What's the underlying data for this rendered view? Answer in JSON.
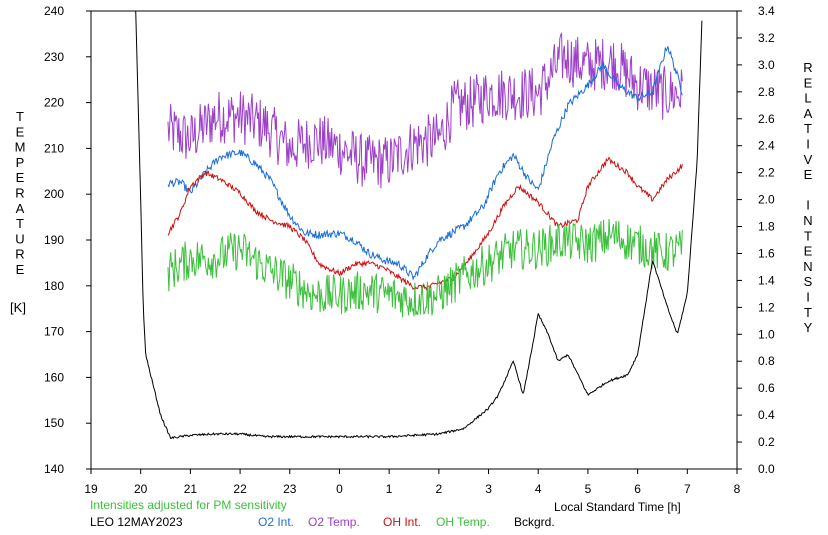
{
  "chart_data": {
    "type": "line",
    "title": "",
    "left_axis": {
      "label_letters": [
        "T",
        "E",
        "M",
        "P",
        "E",
        "R",
        "A",
        "T",
        "U",
        "R",
        "E"
      ],
      "unit": "[K]",
      "ylim": [
        140,
        240
      ],
      "ticks": [
        "140",
        "150",
        "160",
        "170",
        "180",
        "190",
        "200",
        "210",
        "220",
        "230",
        "240"
      ]
    },
    "right_axis": {
      "label_letters": [
        "R",
        "E",
        "L",
        "A",
        "T",
        "I",
        "V",
        "E",
        "",
        "I",
        "N",
        "T",
        "E",
        "N",
        "S",
        "I",
        "T",
        "Y"
      ],
      "ylim": [
        0.0,
        3.4
      ],
      "ticks": [
        "0.0",
        "0.2",
        "0.4",
        "0.6",
        "0.8",
        "1.0",
        "1.2",
        "1.4",
        "1.6",
        "1.8",
        "2.0",
        "2.2",
        "2.4",
        "2.6",
        "2.8",
        "3.0",
        "3.2",
        "3.4"
      ]
    },
    "x_axis": {
      "label": "Local Standard Time [h]",
      "xlim": [
        19,
        32
      ],
      "ticks": [
        "19",
        "20",
        "21",
        "22",
        "23",
        "0",
        "1",
        "2",
        "3",
        "4",
        "5",
        "6",
        "7",
        "8"
      ]
    },
    "notes": {
      "adjusted_text": "Intensities adjusted for PM sensitivity",
      "station_date": "LEO 12MAY2023"
    },
    "legend": [
      {
        "label": "O2 Int.",
        "color": "#1a6fd6"
      },
      {
        "label": "O2 Temp.",
        "color": "#9c40c8"
      },
      {
        "label": "OH Int.",
        "color": "#cc1111"
      },
      {
        "label": "OH Temp.",
        "color": "#3cbf3c"
      },
      {
        "label": "Bckgrd.",
        "color": "#000000"
      }
    ],
    "series": [
      {
        "name": "O2 Temp.",
        "color": "#9c40c8",
        "axis": "left",
        "noise": 6,
        "x": [
          20.55,
          21.0,
          21.5,
          22.0,
          22.5,
          23.0,
          23.5,
          24.0,
          24.5,
          25.0,
          25.5,
          26.0,
          26.3,
          26.7,
          27.0,
          27.5,
          28.0,
          28.5,
          29.0,
          29.5,
          30.0,
          30.5,
          30.9
        ],
        "y": [
          214,
          212,
          217,
          217,
          215,
          210,
          212,
          210,
          207,
          207,
          211,
          212,
          219,
          220,
          222,
          222,
          222,
          230,
          228,
          229,
          224,
          222,
          222
        ]
      },
      {
        "name": "O2 Int.",
        "color": "#1a6fd6",
        "axis": "right",
        "noise": 0.03,
        "x": [
          20.55,
          20.8,
          21.0,
          21.3,
          21.6,
          22.0,
          22.3,
          22.6,
          23.0,
          23.3,
          23.6,
          24.0,
          24.3,
          24.6,
          24.9,
          25.2,
          25.5,
          25.8,
          26.0,
          26.5,
          26.9,
          27.2,
          27.5,
          27.8,
          28.0,
          28.3,
          28.6,
          29.0,
          29.3,
          29.6,
          30.0,
          30.3,
          30.6,
          30.9
        ],
        "y": [
          2.12,
          2.13,
          2.05,
          2.2,
          2.32,
          2.35,
          2.27,
          2.15,
          1.88,
          1.75,
          1.74,
          1.75,
          1.7,
          1.6,
          1.55,
          1.52,
          1.42,
          1.6,
          1.7,
          1.8,
          1.95,
          2.2,
          2.33,
          2.15,
          2.07,
          2.44,
          2.7,
          2.85,
          3.0,
          2.85,
          2.75,
          2.8,
          3.15,
          2.8
        ]
      },
      {
        "name": "OH Int.",
        "color": "#cc1111",
        "axis": "right",
        "noise": 0.02,
        "x": [
          20.55,
          20.8,
          21.0,
          21.3,
          21.6,
          22.0,
          22.3,
          22.6,
          23.0,
          23.3,
          23.6,
          24.0,
          24.3,
          24.6,
          24.9,
          25.2,
          25.5,
          25.8,
          26.0,
          26.3,
          26.6,
          27.0,
          27.3,
          27.6,
          28.0,
          28.4,
          28.8,
          29.0,
          29.4,
          29.8,
          30.0,
          30.3,
          30.6,
          30.9
        ],
        "y": [
          1.75,
          1.9,
          2.1,
          2.2,
          2.15,
          2.05,
          1.92,
          1.85,
          1.8,
          1.7,
          1.52,
          1.45,
          1.52,
          1.53,
          1.49,
          1.42,
          1.35,
          1.35,
          1.38,
          1.42,
          1.55,
          1.75,
          1.95,
          2.1,
          1.98,
          1.8,
          1.85,
          2.1,
          2.3,
          2.2,
          2.1,
          2.0,
          2.15,
          2.25
        ]
      },
      {
        "name": "OH Temp.",
        "color": "#3cbf3c",
        "axis": "left",
        "noise": 4.5,
        "x": [
          20.55,
          21.0,
          21.5,
          22.0,
          22.5,
          23.0,
          23.5,
          24.0,
          24.5,
          25.0,
          25.5,
          26.0,
          26.5,
          27.0,
          27.5,
          28.0,
          28.5,
          29.0,
          29.5,
          30.0,
          30.5,
          30.9
        ],
        "y": [
          183,
          186,
          186,
          188,
          184,
          181,
          178,
          178,
          179,
          178,
          177,
          178,
          182,
          185,
          188,
          188,
          190,
          189,
          191,
          189,
          187,
          188
        ]
      },
      {
        "name": "Bckgrd.",
        "color": "#000000",
        "axis": "right",
        "noise": 0.008,
        "x": [
          19.9,
          20.0,
          20.05,
          20.1,
          20.2,
          20.4,
          20.6,
          21.0,
          21.5,
          22.0,
          22.5,
          23.0,
          24.0,
          25.0,
          25.5,
          26.0,
          26.5,
          27.0,
          27.2,
          27.5,
          27.7,
          28.0,
          28.2,
          28.4,
          28.6,
          28.8,
          29.0,
          29.2,
          29.4,
          29.8,
          30.0,
          30.3,
          30.6,
          30.8,
          31.0,
          31.2,
          31.3
        ],
        "y": [
          3.4,
          2.0,
          1.2,
          0.85,
          0.7,
          0.4,
          0.23,
          0.25,
          0.26,
          0.26,
          0.24,
          0.24,
          0.24,
          0.24,
          0.25,
          0.26,
          0.3,
          0.45,
          0.55,
          0.8,
          0.55,
          1.15,
          1.0,
          0.8,
          0.85,
          0.7,
          0.55,
          0.6,
          0.65,
          0.7,
          0.85,
          1.55,
          1.2,
          1.0,
          1.3,
          2.3,
          3.4
        ]
      }
    ]
  }
}
